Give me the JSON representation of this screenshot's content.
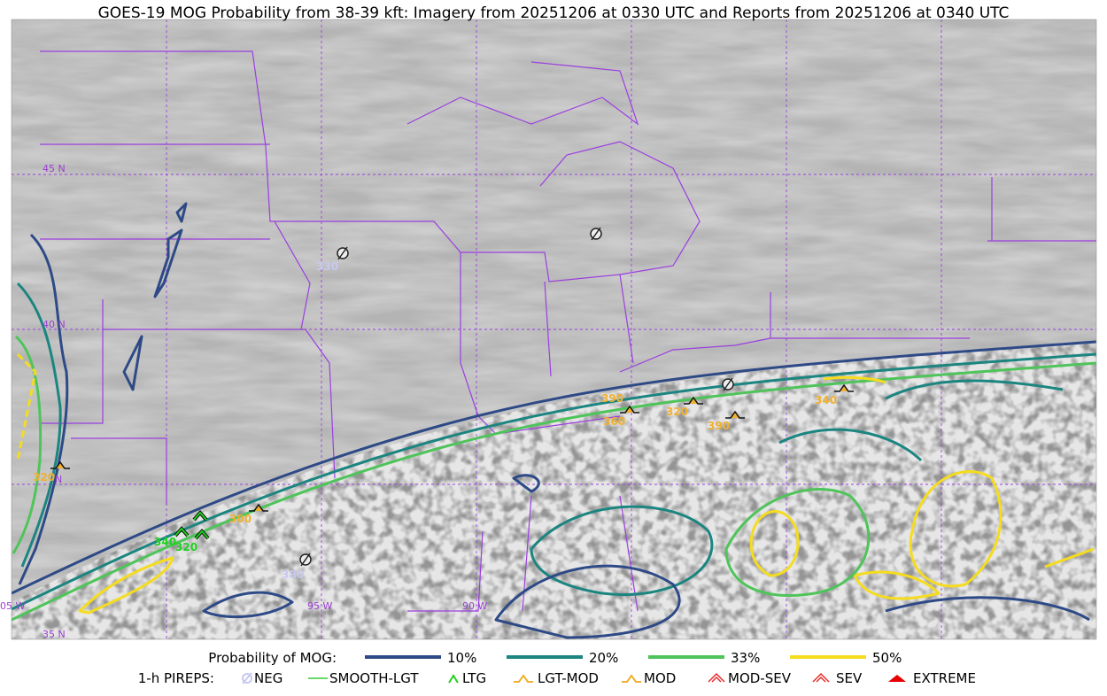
{
  "title": "GOES-19 MOG Probability from 38-39 kft: Imagery from 20251206 at 0330 UTC and Reports from 20251206 at 0340 UTC",
  "grid_labels": {
    "latitudes": [
      "45 N",
      "40 N",
      "N",
      "35 N"
    ],
    "longitudes": [
      "05 W",
      "95 W",
      "90 W"
    ]
  },
  "pirep_labels": [
    {
      "text": "330",
      "kind": "NEG"
    },
    {
      "text": "390",
      "kind": "MOD"
    },
    {
      "text": "360",
      "kind": "MOD"
    },
    {
      "text": "320",
      "kind": "MOD"
    },
    {
      "text": "390",
      "kind": "MOD"
    },
    {
      "text": "340",
      "kind": "MOD"
    },
    {
      "text": "320",
      "kind": "MOD"
    },
    {
      "text": "300",
      "kind": "MOD"
    },
    {
      "text": "340",
      "kind": "LTG"
    },
    {
      "text": "320",
      "kind": "LTG"
    },
    {
      "text": "380",
      "kind": "NEG"
    }
  ],
  "legend": {
    "probability": {
      "label": "Probability of MOG:",
      "items": [
        {
          "label": "10%",
          "color": "#2e4a86"
        },
        {
          "label": "20%",
          "color": "#1b8580"
        },
        {
          "label": "33%",
          "color": "#4ec45a"
        },
        {
          "label": "50%",
          "color": "#f5dc1e"
        }
      ]
    },
    "pireps": {
      "label": "1-h PIREPS:",
      "items": [
        {
          "label": "NEG",
          "color": "#c8c8f0"
        },
        {
          "label": "SMOOTH-LGT",
          "color": "#3ccc3c"
        },
        {
          "label": "LTG",
          "color": "#1ed21e"
        },
        {
          "label": "LGT-MOD",
          "color": "#f0b030"
        },
        {
          "label": "MOD",
          "color": "#f0b030"
        },
        {
          "label": "MOD-SEV",
          "color": "#e83030"
        },
        {
          "label": "SEV",
          "color": "#e83030"
        },
        {
          "label": "EXTREME",
          "color": "#e80000"
        }
      ]
    }
  }
}
